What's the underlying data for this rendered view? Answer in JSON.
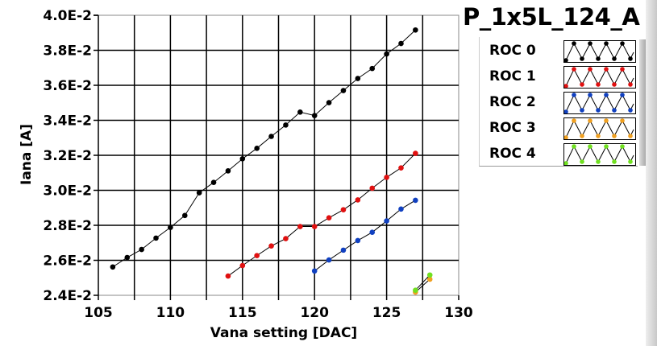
{
  "chart_data": {
    "type": "line",
    "title": "P_1x5L_124_A",
    "xlabel": "Vana setting [DAC]",
    "ylabel": "Iana [A]",
    "xlim": [
      105,
      130
    ],
    "ylim": [
      0.024,
      0.04
    ],
    "x_ticks": [
      "105",
      "110",
      "115",
      "120",
      "125",
      "130"
    ],
    "y_ticks": [
      "2.4E-2",
      "2.6E-2",
      "2.8E-2",
      "3.0E-2",
      "3.2E-2",
      "3.4E-2",
      "3.6E-2",
      "3.8E-2",
      "4.0E-2"
    ],
    "grid": true,
    "legend_position": "right",
    "series": [
      {
        "name": "ROC 0",
        "color": "#000000",
        "x": [
          106,
          107,
          108,
          109,
          110,
          111,
          112,
          113,
          114,
          115,
          116,
          117,
          118,
          119,
          120,
          121,
          122,
          123,
          124,
          125,
          126,
          127
        ],
        "y": [
          0.02562,
          0.02616,
          0.02662,
          0.02727,
          0.02788,
          0.02856,
          0.02986,
          0.03045,
          0.03111,
          0.0318,
          0.0324,
          0.03308,
          0.03373,
          0.03447,
          0.03427,
          0.03501,
          0.0357,
          0.03639,
          0.03696,
          0.03779,
          0.03839,
          0.03916
        ]
      },
      {
        "name": "ROC 1",
        "color": "#e01010",
        "x": [
          114,
          115,
          116,
          117,
          118,
          119,
          120,
          121,
          122,
          123,
          124,
          125,
          126,
          127
        ],
        "y": [
          0.0251,
          0.0257,
          0.02627,
          0.02682,
          0.02724,
          0.02793,
          0.02793,
          0.02843,
          0.02889,
          0.02945,
          0.03012,
          0.03074,
          0.03128,
          0.03211
        ]
      },
      {
        "name": "ROC 2",
        "color": "#1040c0",
        "x": [
          120,
          121,
          122,
          123,
          124,
          125,
          126,
          127
        ],
        "y": [
          0.02539,
          0.02602,
          0.02658,
          0.02713,
          0.0276,
          0.02825,
          0.02893,
          0.02943
        ]
      },
      {
        "name": "ROC 3",
        "color": "#f0a020",
        "x": [
          127,
          128
        ],
        "y": [
          0.02418,
          0.02492
        ]
      },
      {
        "name": "ROC 4",
        "color": "#70e020",
        "x": [
          127,
          128
        ],
        "y": [
          0.02429,
          0.02516
        ]
      }
    ]
  }
}
